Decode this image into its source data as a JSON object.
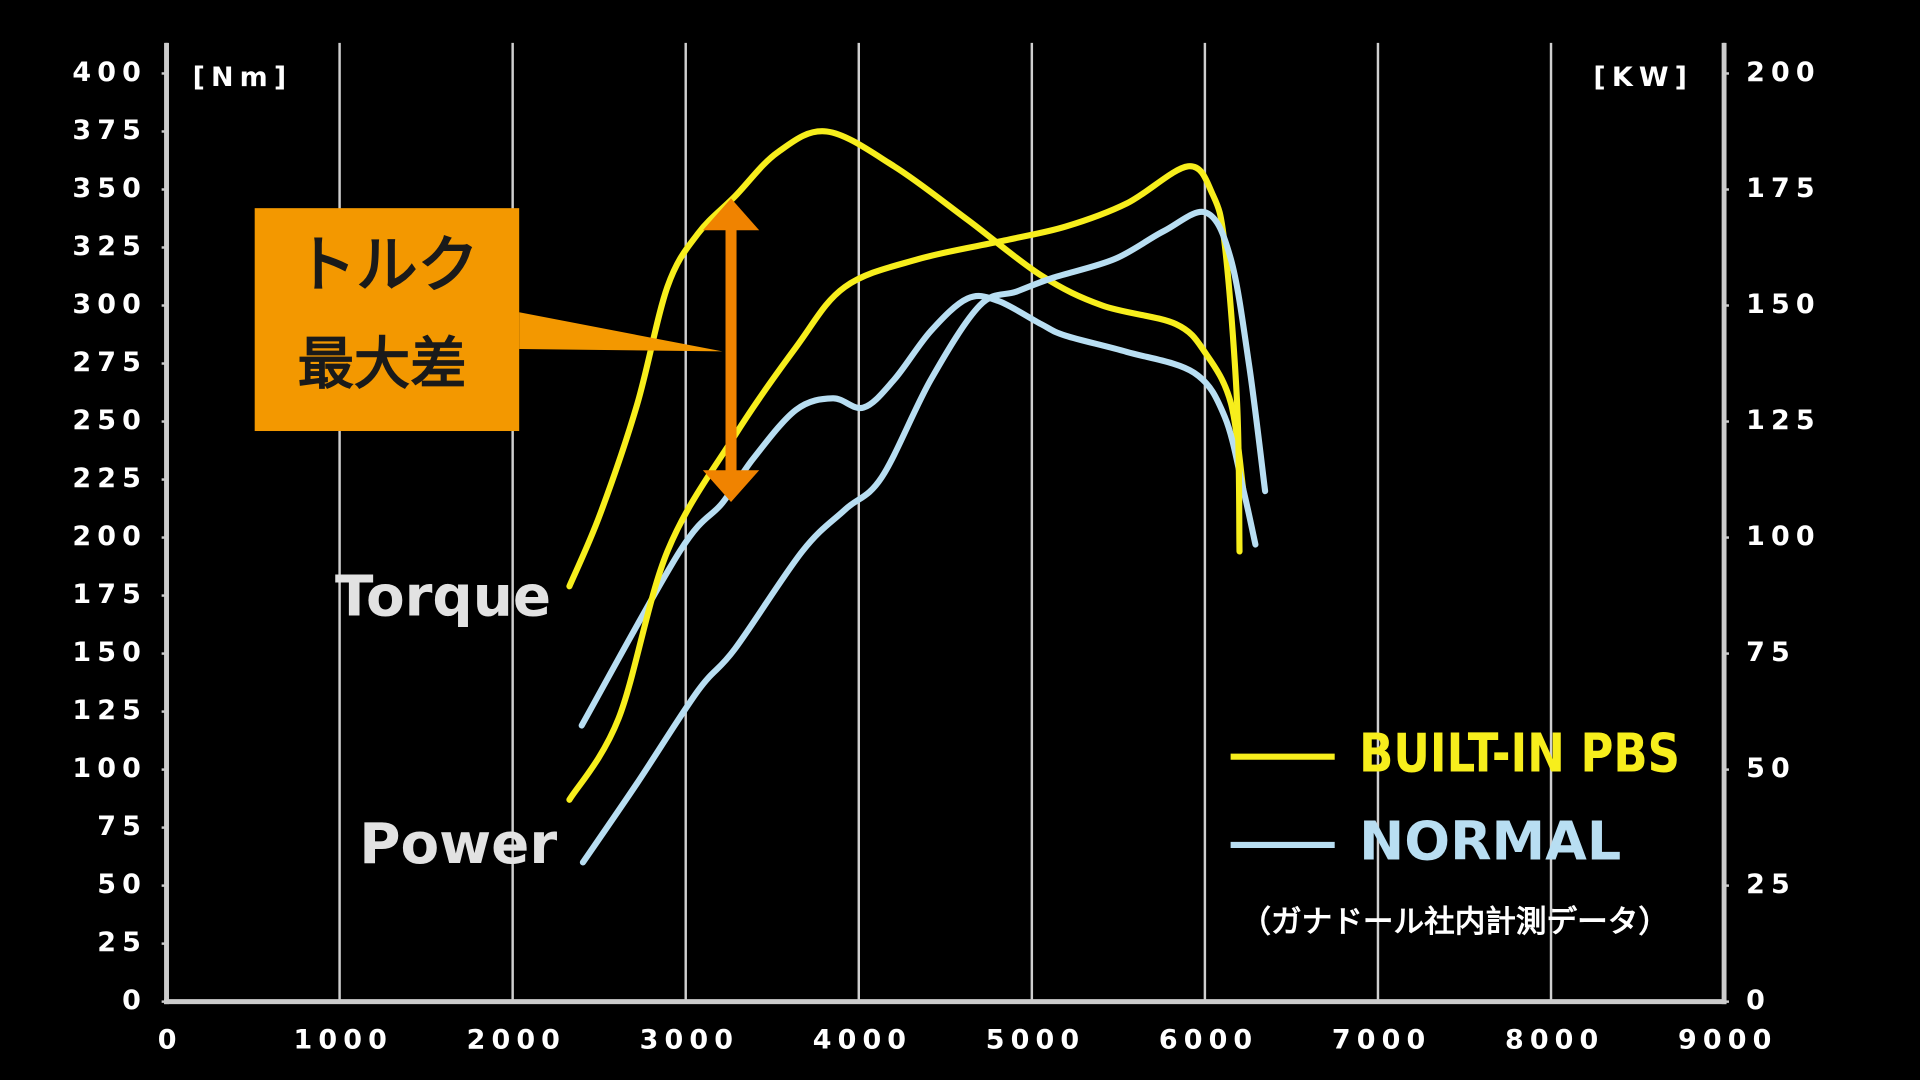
{
  "chart_data": {
    "type": "line",
    "y_label": "[Nm]",
    "y2_label": "[KW]",
    "xlim": [
      0,
      9000
    ],
    "xticks": [
      0,
      1000,
      2000,
      3000,
      4000,
      5000,
      6000,
      7000,
      8000,
      9000
    ],
    "ylim": [
      0,
      400
    ],
    "yticks": [
      0,
      25,
      50,
      75,
      100,
      125,
      150,
      175,
      200,
      225,
      250,
      275,
      300,
      325,
      350,
      375,
      400
    ],
    "y2lim": [
      0,
      200
    ],
    "y2ticks": [
      0,
      25,
      50,
      75,
      100,
      125,
      150,
      175,
      200
    ],
    "grid": true,
    "series": [
      {
        "name": "BUILT-IN PBS",
        "color": "#f7ee1c",
        "x": [
          2328,
          2505,
          2718,
          2894,
          3071,
          3284,
          3531,
          3815,
          4204,
          4628,
          5053,
          5407,
          5832,
          6008,
          6150,
          6221
        ],
        "values": [
          179,
          210,
          257,
          308,
          331,
          347,
          366,
          375,
          360,
          337,
          313,
          300,
          292,
          279,
          258,
          221
        ]
      },
      {
        "name": "NORMAL",
        "color": "#b8def2",
        "x": [
          2399,
          2965,
          3213,
          3390,
          3637,
          3850,
          4027,
          4204,
          4416,
          4628,
          4805,
          5053,
          5195,
          5549,
          5938,
          6115,
          6221,
          6292
        ],
        "values": [
          119,
          194,
          215,
          234,
          255,
          260,
          256,
          268,
          289,
          303,
          302,
          292,
          287,
          280,
          271,
          252,
          221,
          197
        ]
      },
      {
        "name": "BUILT-IN PBS",
        "color": "#f7ee1c",
        "axis": "y2",
        "x": [
          2328,
          2612,
          2894,
          3284,
          3637,
          3920,
          4345,
          4841,
          5195,
          5549,
          5903,
          6044,
          6115,
          6186,
          6200
        ],
        "values": [
          43.5,
          61,
          97,
          122,
          141,
          154,
          160,
          164,
          167,
          172,
          180,
          174,
          163,
          129,
          97
        ]
      },
      {
        "name": "NORMAL",
        "color": "#b8def2",
        "axis": "y2",
        "x": [
          2406,
          2718,
          3071,
          3284,
          3673,
          3920,
          4133,
          4416,
          4699,
          4911,
          5124,
          5478,
          5761,
          6008,
          6150,
          6256,
          6348
        ],
        "values": [
          30,
          47,
          67,
          76,
          97,
          106,
          113,
          134,
          150,
          153,
          156,
          160,
          166,
          170,
          160,
          137,
          110
        ]
      }
    ],
    "annotations": {
      "torque_label": "Torque",
      "power_label": "Power",
      "callout": [
        "トルク",
        "最大差"
      ],
      "note": "（ガナドール社内計測データ）"
    }
  }
}
